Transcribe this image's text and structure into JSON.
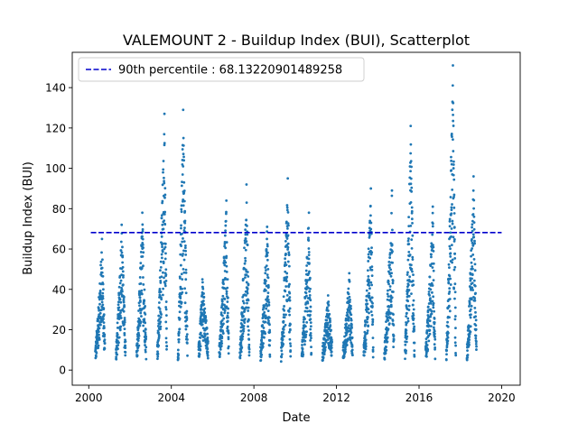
{
  "chart_data": {
    "type": "scatter",
    "title": "VALEMOUNT 2 - Buildup Index (BUI), Scatterplot",
    "xlabel": "Date",
    "ylabel": "Buildup Index (BUI)",
    "xlim": [
      1999.2,
      2020.9
    ],
    "ylim": [
      -7.5,
      157.5
    ],
    "x_ticks": [
      2000,
      2004,
      2008,
      2012,
      2016,
      2020
    ],
    "y_ticks": [
      0,
      20,
      40,
      60,
      80,
      100,
      120,
      140
    ],
    "legend_position": "top-left",
    "legend_label": "90th percentile : 68.13220901489258",
    "percentile_90": 68.13220901489258,
    "point_color": "#1f77b4",
    "line_color": "#0000cc",
    "series": [
      {
        "seasons": [
          {
            "year": 2000,
            "x_start": 2000.32,
            "x_end": 2000.78,
            "peak": 65,
            "peak_at": 0.7
          },
          {
            "year": 2001,
            "x_start": 2001.32,
            "x_end": 2001.78,
            "peak": 72,
            "peak_at": 0.6
          },
          {
            "year": 2002,
            "x_start": 2002.32,
            "x_end": 2002.78,
            "peak": 78,
            "peak_at": 0.6
          },
          {
            "year": 2003,
            "x_start": 2003.32,
            "x_end": 2003.78,
            "peak": 127,
            "peak_at": 0.75
          },
          {
            "year": 2004,
            "x_start": 2004.32,
            "x_end": 2004.78,
            "peak": 129,
            "peak_at": 0.55
          },
          {
            "year": 2005,
            "x_start": 2005.32,
            "x_end": 2005.78,
            "peak": 45,
            "peak_at": 0.4
          },
          {
            "year": 2006,
            "x_start": 2006.32,
            "x_end": 2006.78,
            "peak": 84,
            "peak_at": 0.75
          },
          {
            "year": 2007,
            "x_start": 2007.32,
            "x_end": 2007.78,
            "peak": 92,
            "peak_at": 0.7
          },
          {
            "year": 2008,
            "x_start": 2008.32,
            "x_end": 2008.78,
            "peak": 71,
            "peak_at": 0.7
          },
          {
            "year": 2009,
            "x_start": 2009.32,
            "x_end": 2009.78,
            "peak": 95,
            "peak_at": 0.7
          },
          {
            "year": 2010,
            "x_start": 2010.32,
            "x_end": 2010.78,
            "peak": 78,
            "peak_at": 0.75
          },
          {
            "year": 2011,
            "x_start": 2011.32,
            "x_end": 2011.78,
            "peak": 37,
            "peak_at": 0.6
          },
          {
            "year": 2012,
            "x_start": 2012.32,
            "x_end": 2012.78,
            "peak": 48,
            "peak_at": 0.65
          },
          {
            "year": 2013,
            "x_start": 2013.32,
            "x_end": 2013.78,
            "peak": 90,
            "peak_at": 0.75
          },
          {
            "year": 2014,
            "x_start": 2014.32,
            "x_end": 2014.78,
            "peak": 89,
            "peak_at": 0.8
          },
          {
            "year": 2015,
            "x_start": 2015.32,
            "x_end": 2015.78,
            "peak": 121,
            "peak_at": 0.6
          },
          {
            "year": 2016,
            "x_start": 2016.32,
            "x_end": 2016.78,
            "peak": 81,
            "peak_at": 0.75
          },
          {
            "year": 2017,
            "x_start": 2017.32,
            "x_end": 2017.78,
            "peak": 151,
            "peak_at": 0.7
          },
          {
            "year": 2018,
            "x_start": 2018.32,
            "x_end": 2018.78,
            "peak": 96,
            "peak_at": 0.7
          }
        ]
      }
    ]
  }
}
